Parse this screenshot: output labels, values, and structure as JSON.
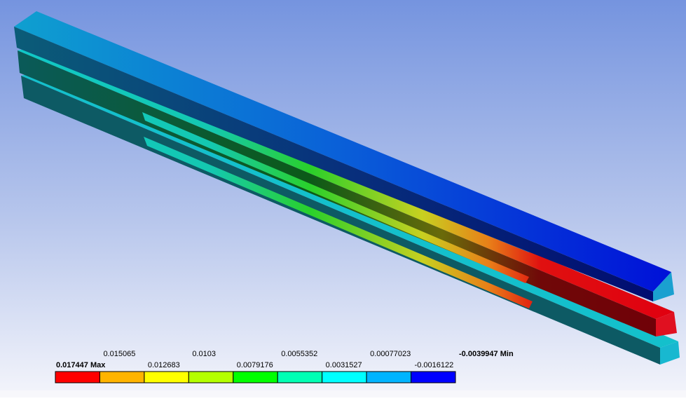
{
  "legend": {
    "labels": [
      "0.017447",
      "0.015065",
      "0.012683",
      "0.0103",
      "0.0079176",
      "0.0055352",
      "0.0031527",
      "0.00077023",
      "-0.0016122",
      "-0.0039947"
    ],
    "max_tag": "Max",
    "min_tag": "Min",
    "colors": [
      "#ff0000",
      "#ffb400",
      "#ffff00",
      "#b4ff00",
      "#00ff00",
      "#00ffb4",
      "#00ffff",
      "#00b4ff",
      "#0000ff"
    ]
  }
}
